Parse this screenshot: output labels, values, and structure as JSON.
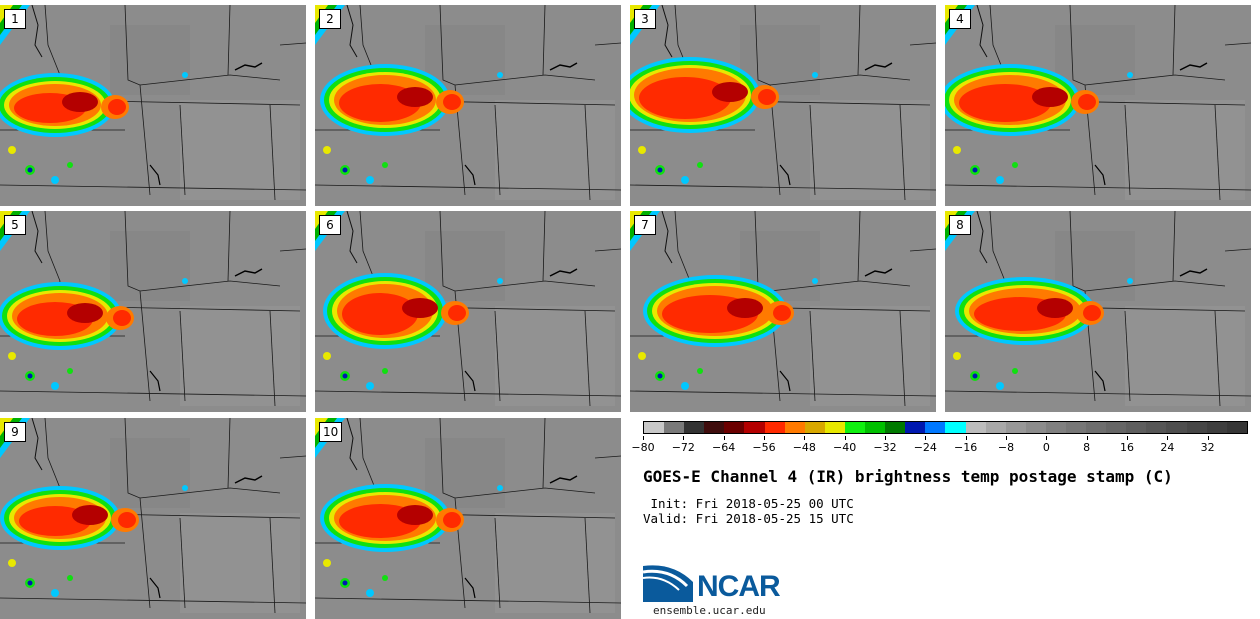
{
  "panels": [
    {
      "label": "1"
    },
    {
      "label": "2"
    },
    {
      "label": "3"
    },
    {
      "label": "4"
    },
    {
      "label": "5"
    },
    {
      "label": "6"
    },
    {
      "label": "7"
    },
    {
      "label": "8"
    },
    {
      "label": "9"
    },
    {
      "label": "10"
    }
  ],
  "colorbar": {
    "colors": [
      "#c8c8c8",
      "#7a7a7a",
      "#333333",
      "#3f0d0d",
      "#6b0000",
      "#b40000",
      "#ff2a00",
      "#ff7a00",
      "#d8a800",
      "#e8e800",
      "#10f010",
      "#00c000",
      "#007a00",
      "#0018b0",
      "#0078ff",
      "#00ffff",
      "#bcbcbc",
      "#a8a8a8",
      "#989898",
      "#8c8c8c",
      "#808080",
      "#777777",
      "#6e6e6e",
      "#666666",
      "#5e5e5e",
      "#565656",
      "#4e4e4e",
      "#464646",
      "#3e3e3e",
      "#363636"
    ],
    "tick_labels": [
      "−80",
      "−72",
      "−64",
      "−56",
      "−48",
      "−40",
      "−32",
      "−24",
      "−16",
      "−8",
      "0",
      "8",
      "16",
      "24",
      "32"
    ]
  },
  "title": "GOES-E Channel 4 (IR) brightness temp postage stamp (C)",
  "init": " Init: Fri 2018-05-25 00 UTC",
  "valid": "Valid: Fri 2018-05-25 15 UTC",
  "logo": {
    "text": "NCAR",
    "color": "#0a5a9c"
  },
  "site": "ensemble.ucar.edu"
}
